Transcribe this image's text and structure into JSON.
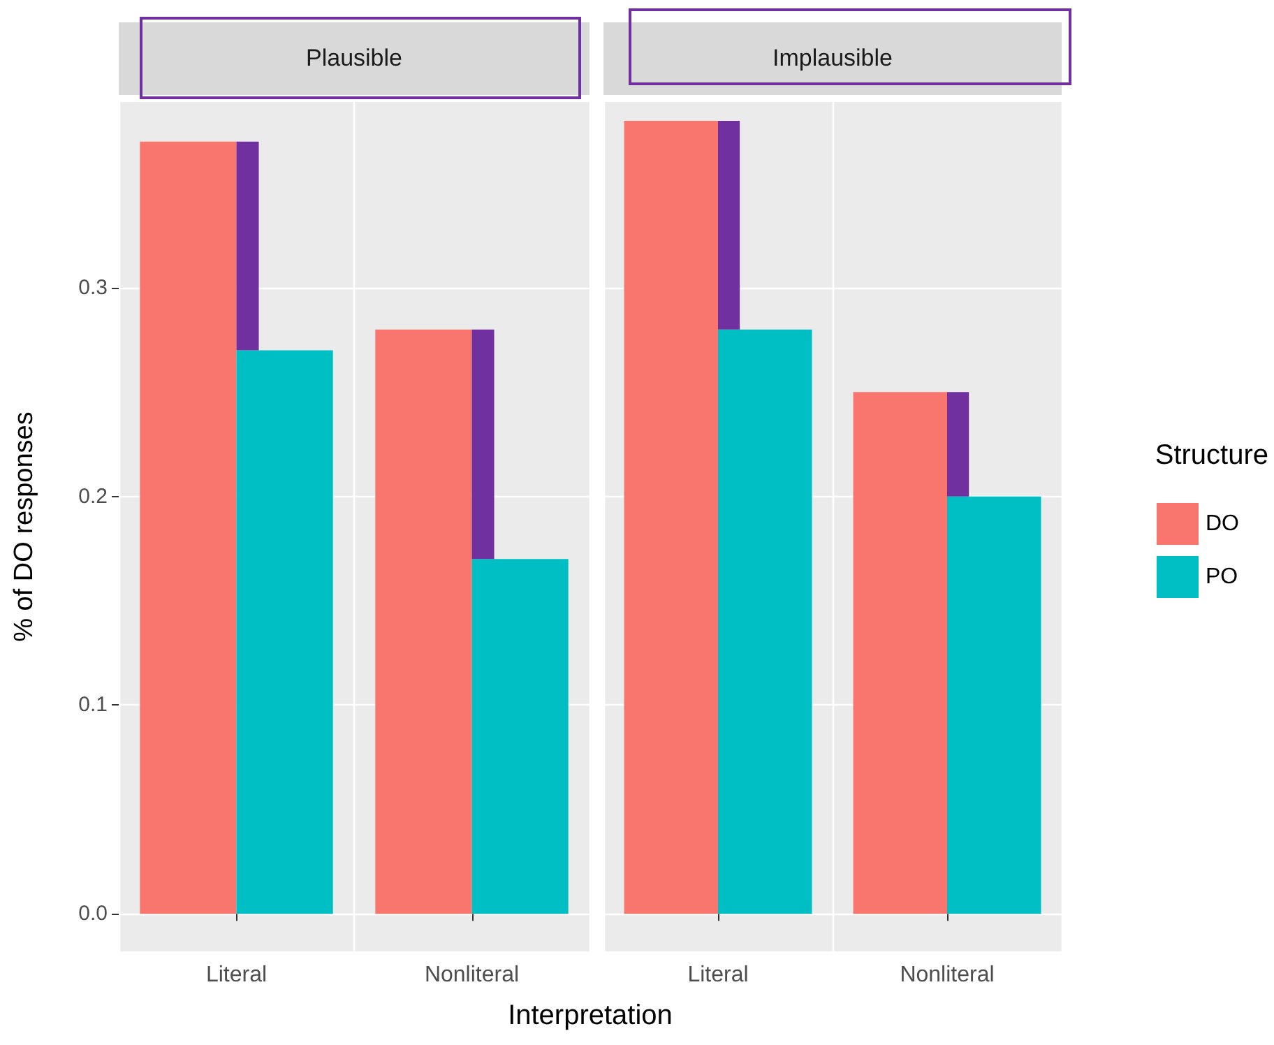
{
  "chart_data": [
    {
      "type": "bar",
      "title": "Plausible",
      "xlabel": "Interpretation",
      "ylabel": "% of DO responses",
      "categories": [
        "Literal",
        "Nonliteral"
      ],
      "series": [
        {
          "color": "#f8766d",
          "values": [
            0.37,
            0.28
          ]
        },
        {
          "color": "#00bfc4",
          "values": [
            0.27,
            0.17
          ]
        },
        {
          "type": "bar",
          "color": "#7030a0",
          "base": [
            0.27,
            0.17
          ],
          "values": [
            0.1,
            0.11
          ]
        }
      ],
      "ylim": [
        -0.018,
        0.389
      ],
      "yticks": [
        {
          "value": 0,
          "label": "0.0"
        },
        {
          "value": 0.1,
          "label": "0.1"
        },
        {
          "value": 0.2,
          "label": "0.2"
        },
        {
          "value": 0.3,
          "label": "0.3"
        }
      ],
      "grid": true,
      "legend": false
    },
    {
      "type": "bar",
      "title": "Implausible",
      "categories": [
        "Literal",
        "Nonliteral"
      ],
      "series": [
        {
          "name": "DO",
          "color": "#f8766d",
          "values": [
            0.38,
            0.25
          ]
        },
        {
          "name": "PO",
          "color": "#00bfc4",
          "values": [
            0.28,
            0.2
          ]
        },
        {
          "type": "bar",
          "color": "#7030a0",
          "base": [
            0.28,
            0.2
          ],
          "values": [
            0.1,
            0.05
          ]
        }
      ],
      "ylim": [
        -0.018,
        0.389
      ],
      "yticks": [
        0,
        0.1,
        0.2,
        0.3
      ],
      "grid": true,
      "legend": "right",
      "legend_title": "Structure",
      "tick_labels": "x"
    }
  ]
}
